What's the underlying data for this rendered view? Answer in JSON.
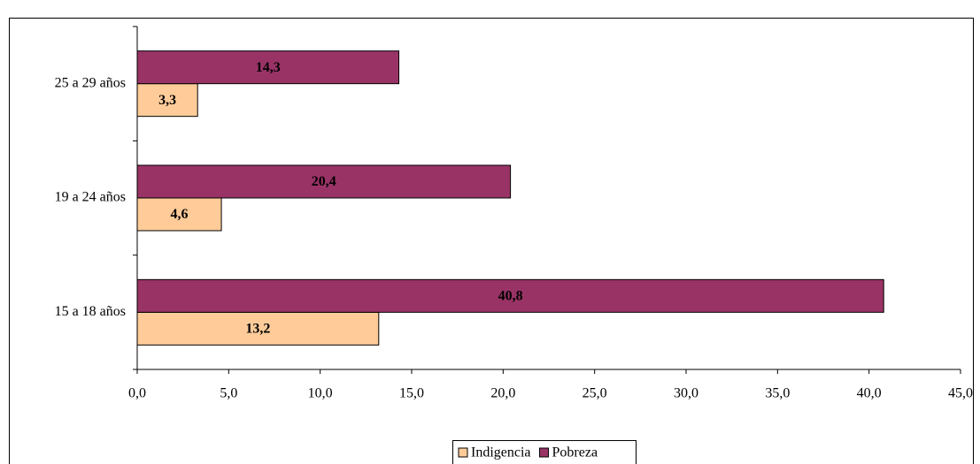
{
  "chart_data": {
    "type": "bar",
    "orientation": "horizontal",
    "categories": [
      "15 a 18 años",
      "19 a 24 años",
      "25 a 29 años"
    ],
    "series": [
      {
        "name": "Indigencia",
        "color": "#ffcc99",
        "values": [
          13.2,
          4.6,
          3.3
        ],
        "value_labels": [
          "13,2",
          "4,6",
          "3,3"
        ]
      },
      {
        "name": "Pobreza",
        "color": "#993366",
        "values": [
          40.8,
          20.4,
          14.3
        ],
        "value_labels": [
          "40,8",
          "20,4",
          "14,3"
        ]
      }
    ],
    "xlim": [
      0,
      45
    ],
    "xticks": [
      {
        "value": 0,
        "label": "0,0"
      },
      {
        "value": 5,
        "label": "5,0"
      },
      {
        "value": 10,
        "label": "10,0"
      },
      {
        "value": 15,
        "label": "15,0"
      },
      {
        "value": 20,
        "label": "20,0"
      },
      {
        "value": 25,
        "label": "25,0"
      },
      {
        "value": 30,
        "label": "30,0"
      },
      {
        "value": 35,
        "label": "35,0"
      },
      {
        "value": 40,
        "label": "40,0"
      },
      {
        "value": 45,
        "label": "45,0"
      }
    ],
    "legend": "bottom"
  }
}
